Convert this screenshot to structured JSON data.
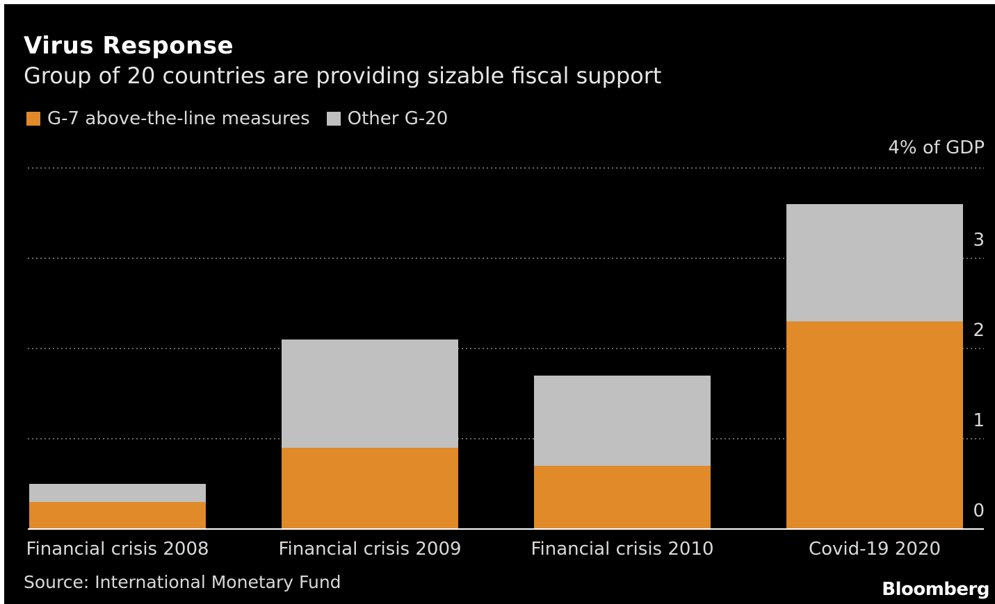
{
  "header": {
    "title": "Virus Response",
    "subtitle": "Group of 20 countries are providing sizable fiscal support"
  },
  "legend": {
    "items": [
      {
        "label": "G-7 above-the-line measures",
        "color": "#e08a2a"
      },
      {
        "label": "Other G-20",
        "color": "#c0c0c0"
      }
    ]
  },
  "footer": {
    "source": "Source: International Monetary Fund",
    "brand": "Bloomberg"
  },
  "chart_data": {
    "type": "bar",
    "stacked": true,
    "categories": [
      "Financial crisis 2008",
      "Financial crisis 2009",
      "Financial crisis 2010",
      "Covid-19 2020"
    ],
    "series": [
      {
        "name": "G-7 above-the-line measures",
        "values": [
          0.3,
          0.9,
          0.7,
          2.3
        ],
        "color": "#e08a2a"
      },
      {
        "name": "Other G-20",
        "values": [
          0.2,
          1.2,
          1.0,
          1.3
        ],
        "color": "#c0c0c0"
      }
    ],
    "ylabel": "4% of GDP",
    "yticks": [
      "0",
      "1",
      "2",
      "3"
    ],
    "ylim": [
      0,
      4
    ],
    "grid": true,
    "legend_position": "top-left",
    "y_axis_side": "right"
  }
}
